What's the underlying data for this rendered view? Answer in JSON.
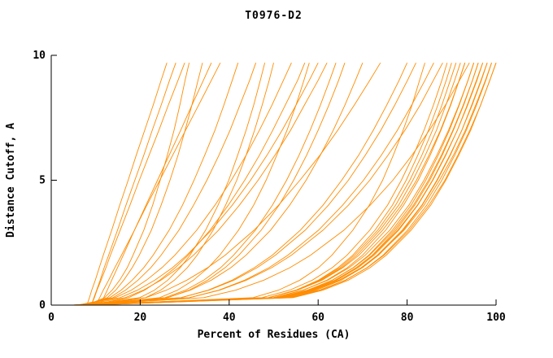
{
  "chart_data": {
    "type": "line",
    "title": "T0976-D2",
    "xlabel": "Percent of Residues (CA)",
    "ylabel": "Distance Cutoff, A",
    "xlim": [
      0,
      100
    ],
    "ylim": [
      0,
      10
    ],
    "xticks": [
      0,
      20,
      40,
      60,
      80,
      100
    ],
    "yticks": [
      0,
      5,
      10
    ],
    "grid": false,
    "legend": "none",
    "line_color": "#FF8C00",
    "axis_color": "#000000",
    "y_levels": [
      0,
      0.3,
      0.6,
      1,
      1.5,
      2,
      3,
      4,
      5,
      6,
      7,
      8,
      9,
      9.7
    ],
    "series": [
      {
        "xs": [
          8,
          8.6,
          9.1,
          9.9,
          10.8,
          11.7,
          13.6,
          15.4,
          17.3,
          19.1,
          21.0,
          22.9,
          24.7,
          26
        ]
      },
      {
        "xs": [
          9,
          9.7,
          10.3,
          11.2,
          12.3,
          13.3,
          15.5,
          17.7,
          19.8,
          22.0,
          24.2,
          26.3,
          28.5,
          30
        ]
      },
      {
        "xs": [
          8,
          12.6,
          14.5,
          16.3,
          18.2,
          19.8,
          22.5,
          24.7,
          26.7,
          28.5,
          30.1,
          31.6,
          33.0,
          34
        ]
      },
      {
        "xs": [
          10,
          10.9,
          11.7,
          12.9,
          14.3,
          15.8,
          18.7,
          21.5,
          24.4,
          27.3,
          30.2,
          33.1,
          36.0,
          38
        ]
      },
      {
        "xs": [
          7,
          13.2,
          15.7,
          18.2,
          20.8,
          22.9,
          26.5,
          29.5,
          32.1,
          34.5,
          36.8,
          38.8,
          40.7,
          42
        ]
      },
      {
        "xs": [
          9,
          9.6,
          10.2,
          11.0,
          11.9,
          12.9,
          14.9,
          16.8,
          18.8,
          20.8,
          22.7,
          24.7,
          26.6,
          28
        ]
      },
      {
        "xs": [
          11,
          11.8,
          12.6,
          13.6,
          14.9,
          16.2,
          18.7,
          21.3,
          23.9,
          26.5,
          29.1,
          31.6,
          34.2,
          36
        ]
      },
      {
        "xs": [
          8,
          12.0,
          13.7,
          15.4,
          17.1,
          18.4,
          20.8,
          22.8,
          24.5,
          26.1,
          27.6,
          28.9,
          30.1,
          31
        ]
      },
      {
        "xs": [
          7,
          13.9,
          16.7,
          19.5,
          22.4,
          24.7,
          28.7,
          32.0,
          35.0,
          37.7,
          40.2,
          42.4,
          44.6,
          46
        ]
      },
      {
        "xs": [
          8,
          21.2,
          24.6,
          27.7,
          30.6,
          32.8,
          36.4,
          39.2,
          41.7,
          43.8,
          45.7,
          47.4,
          49.0,
          50
        ]
      },
      {
        "xs": [
          6,
          14.4,
          18.0,
          21.4,
          24.9,
          27.8,
          32.7,
          36.8,
          40.5,
          43.8,
          46.8,
          49.6,
          52.2,
          54
        ]
      },
      {
        "xs": [
          9,
          24.4,
          28.4,
          32.0,
          35.3,
          37.9,
          42.1,
          45.5,
          48.3,
          50.7,
          53.0,
          55.0,
          56.8,
          58
        ]
      },
      {
        "xs": [
          7,
          16.7,
          20.7,
          24.7,
          28.7,
          32.0,
          37.6,
          42.3,
          46.5,
          50.3,
          53.8,
          56.9,
          60.0,
          62
        ]
      },
      {
        "xs": [
          8,
          26.2,
          31.0,
          35.2,
          39.1,
          42.2,
          47.2,
          51.2,
          54.5,
          57.4,
          60.0,
          62.4,
          64.6,
          66
        ]
      },
      {
        "xs": [
          6,
          26.1,
          31.3,
          36.0,
          40.4,
          43.8,
          49.3,
          53.6,
          57.3,
          60.5,
          63.4,
          66.0,
          68.4,
          70
        ]
      },
      {
        "xs": [
          10,
          21.3,
          25.9,
          30.5,
          35.2,
          39.1,
          45.6,
          51.1,
          55.9,
          60.4,
          64.4,
          68.1,
          71.6,
          74
        ]
      },
      {
        "xs": [
          7,
          19.9,
          23.2,
          26.2,
          29.0,
          31.2,
          34.7,
          37.5,
          39.9,
          41.9,
          43.8,
          45.5,
          47.0,
          48
        ]
      },
      {
        "xs": [
          9,
          17.4,
          21.0,
          24.4,
          27.9,
          30.8,
          35.7,
          39.8,
          43.5,
          46.8,
          49.8,
          52.6,
          55.4,
          57
        ]
      },
      {
        "xs": [
          8,
          25.6,
          30.2,
          34.3,
          38.1,
          41.0,
          45.9,
          49.7,
          52.9,
          55.7,
          58.2,
          60.5,
          62.6,
          64
        ]
      },
      {
        "xs": [
          6,
          15.5,
          19.4,
          23.3,
          27.3,
          30.5,
          36.0,
          40.7,
          44.8,
          48.5,
          51.9,
          55.0,
          58.0,
          60
        ]
      },
      {
        "xs": [
          6,
          29.2,
          35.3,
          40.7,
          45.7,
          49.7,
          56.0,
          61.1,
          65.3,
          69.1,
          72.4,
          75.4,
          78.2,
          80
        ]
      },
      {
        "xs": [
          7,
          45.4,
          51.1,
          55.9,
          60.1,
          63.1,
          67.8,
          71.5,
          74.5,
          76.9,
          79.1,
          81.1,
          82.8,
          84
        ]
      },
      {
        "xs": [
          5,
          31.1,
          37.9,
          43.9,
          49.6,
          54.0,
          61.1,
          66.8,
          71.6,
          75.7,
          79.5,
          82.9,
          85.9,
          88
        ]
      },
      {
        "xs": [
          8,
          48.9,
          55.0,
          60.1,
          64.5,
          67.8,
          72.8,
          76.7,
          79.8,
          82.4,
          84.8,
          86.9,
          88.8,
          90
        ]
      },
      {
        "xs": [
          6,
          48.9,
          55.3,
          60.6,
          65.3,
          68.7,
          73.9,
          78.1,
          81.3,
          84.1,
          86.6,
          88.7,
          90.7,
          92
        ]
      },
      {
        "xs": [
          7,
          34.3,
          41.5,
          47.8,
          53.7,
          58.3,
          65.8,
          71.7,
          76.8,
          81.1,
          85.0,
          88.6,
          91.8,
          94
        ]
      },
      {
        "xs": [
          5,
          49.9,
          56.6,
          62.2,
          67.0,
          70.6,
          76.1,
          80.4,
          83.8,
          86.7,
          89.3,
          91.6,
          93.7,
          95
        ]
      },
      {
        "xs": [
          8,
          51.9,
          58.4,
          63.9,
          68.6,
          72.2,
          77.5,
          81.7,
          85.1,
          87.9,
          90.4,
          92.7,
          94.7,
          96
        ]
      },
      {
        "xs": [
          6,
          51.4,
          58.1,
          63.8,
          68.7,
          72.3,
          77.9,
          82.3,
          85.7,
          88.6,
          91.3,
          93.5,
          95.6,
          97
        ]
      },
      {
        "xs": [
          7,
          52.4,
          59.1,
          64.8,
          69.7,
          73.3,
          78.9,
          83.3,
          86.7,
          89.6,
          92.3,
          94.5,
          96.6,
          98
        ]
      },
      {
        "xs": [
          5,
          51.9,
          58.9,
          64.7,
          69.8,
          73.5,
          79.3,
          83.8,
          87.3,
          90.4,
          93.1,
          95.4,
          97.6,
          99
        ]
      },
      {
        "xs": [
          9,
          54.4,
          61.1,
          66.8,
          71.7,
          75.3,
          80.9,
          85.3,
          88.7,
          91.6,
          94.3,
          96.5,
          98.6,
          100
        ]
      },
      {
        "xs": [
          6,
          31.1,
          37.7,
          43.5,
          49.0,
          53.2,
          60.1,
          65.5,
          70.2,
          74.2,
          77.8,
          81.0,
          84.0,
          86
        ]
      },
      {
        "xs": [
          8,
          50.4,
          56.7,
          62.0,
          66.6,
          70.0,
          75.2,
          79.2,
          82.5,
          85.2,
          87.6,
          89.8,
          91.7,
          93
        ]
      },
      {
        "xs": [
          7,
          48.9,
          55.1,
          60.3,
          64.9,
          68.2,
          73.4,
          77.4,
          80.6,
          83.3,
          85.7,
          87.8,
          89.7,
          91
        ]
      },
      {
        "xs": [
          5,
          29.2,
          35.5,
          41.1,
          46.3,
          50.4,
          57.1,
          62.3,
          66.8,
          70.6,
          74.1,
          77.2,
          80.1,
          82
        ]
      },
      {
        "xs": [
          6,
          47.4,
          53.6,
          58.7,
          63.2,
          66.5,
          71.6,
          75.6,
          78.7,
          81.4,
          83.8,
          85.9,
          87.8,
          89
        ]
      },
      {
        "xs": [
          8,
          51.4,
          57.9,
          63.2,
          67.9,
          71.4,
          76.7,
          80.9,
          84.2,
          87.0,
          89.5,
          91.7,
          93.7,
          95
        ]
      },
      {
        "xs": [
          7,
          51.9,
          58.6,
          64.2,
          69.0,
          72.6,
          78.1,
          82.4,
          85.8,
          88.7,
          91.3,
          93.6,
          95.7,
          97
        ]
      },
      {
        "xs": [
          5,
          48.9,
          55.4,
          60.9,
          65.6,
          69.2,
          74.5,
          78.7,
          82.1,
          84.9,
          87.5,
          89.7,
          91.7,
          93
        ]
      },
      {
        "xs": [
          9,
          53.9,
          60.6,
          66.2,
          71.0,
          74.6,
          80.1,
          84.4,
          87.8,
          90.7,
          93.3,
          95.6,
          97.7,
          99
        ]
      },
      {
        "xs": [
          6,
          50.9,
          57.6,
          63.2,
          68.0,
          71.6,
          77.1,
          81.4,
          84.8,
          87.7,
          90.3,
          92.6,
          94.7,
          96
        ]
      },
      {
        "xs": [
          8,
          52.9,
          59.6,
          65.2,
          70.0,
          73.6,
          79.1,
          83.4,
          86.8,
          89.7,
          92.3,
          94.6,
          96.7,
          98
        ]
      },
      {
        "xs": [
          7,
          53.4,
          60.3,
          66.1,
          71.1,
          74.8,
          80.5,
          84.9,
          88.5,
          91.4,
          94.1,
          96.5,
          98.6,
          100
        ]
      }
    ]
  }
}
